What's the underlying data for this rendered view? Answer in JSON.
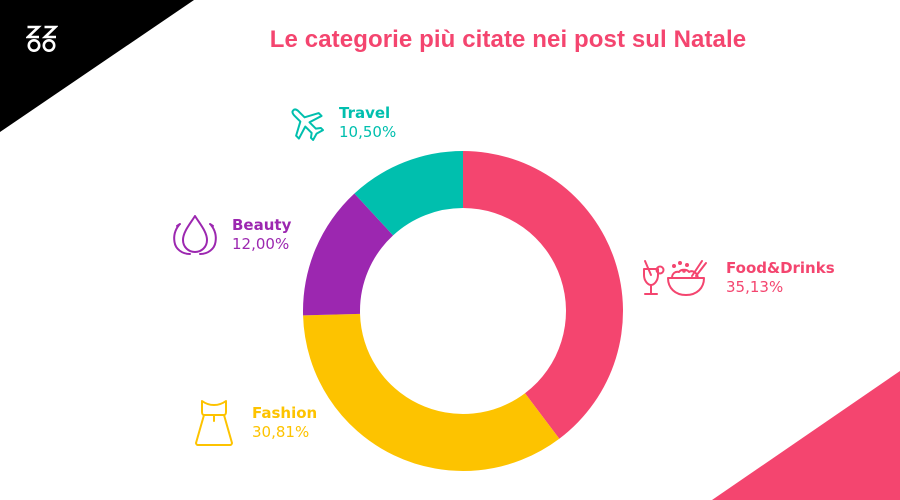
{
  "header": {
    "logo_text": "ZZ∞",
    "title": "Le categorie più citate nei post sul Natale"
  },
  "colors": {
    "title": "#f4456f",
    "corner_top_left": "#000000",
    "corner_bottom_right": "#f4456f"
  },
  "labels": {
    "travel": {
      "name": "Travel",
      "value": "10,50%",
      "icon": "airplane-icon",
      "color": "#00bfae"
    },
    "beauty": {
      "name": "Beauty",
      "value": "12,00%",
      "icon": "lotus-icon",
      "color": "#9c27b0"
    },
    "food": {
      "name": "Food&Drinks",
      "value": "35,13%",
      "icon": "cocktail-bowl-icon",
      "color": "#f4456f"
    },
    "fashion": {
      "name": "Fashion",
      "value": "30,81%",
      "icon": "dress-icon",
      "color": "#fdc300"
    }
  },
  "chart_data": {
    "type": "pie",
    "subtype": "donut",
    "title": "Le categorie più citate nei post sul Natale",
    "categories": [
      "Food&Drinks",
      "Fashion",
      "Beauty",
      "Travel"
    ],
    "values": [
      35.13,
      30.81,
      12.0,
      10.5
    ],
    "value_labels": [
      "35,13%",
      "30,81%",
      "12,00%",
      "10,50%"
    ],
    "colors": [
      "#f4456f",
      "#fdc300",
      "#9c27b0",
      "#00bfae"
    ],
    "start_angle": "12 o'clock, clockwise",
    "legend_position": "labels around chart with icons"
  }
}
